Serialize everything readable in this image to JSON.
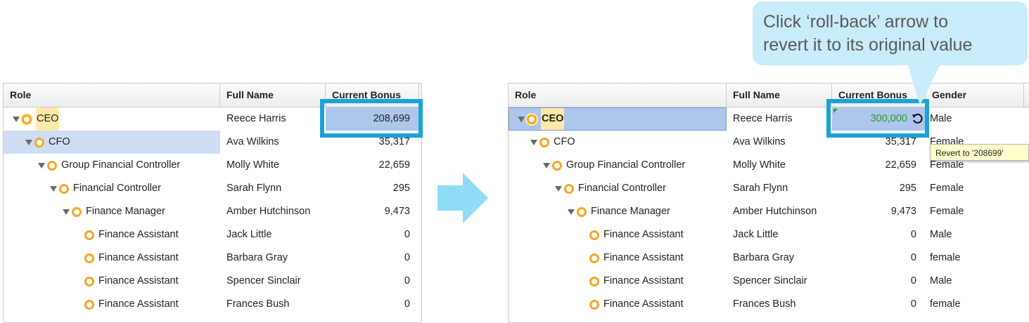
{
  "columns": {
    "role": "Role",
    "full_name": "Full Name",
    "current_bonus": "Current Bonus",
    "gender": "Gender"
  },
  "left_rows": [
    {
      "role": "CEO",
      "name": "Reece Harris",
      "bonus": "208,699"
    },
    {
      "role": "CFO",
      "name": "Ava Wilkins",
      "bonus": "35,317"
    },
    {
      "role": "Group Financial Controller",
      "name": "Molly White",
      "bonus": "22,659"
    },
    {
      "role": "Financial Controller",
      "name": "Sarah Flynn",
      "bonus": "295"
    },
    {
      "role": "Finance Manager",
      "name": "Amber Hutchinson",
      "bonus": "9,473"
    },
    {
      "role": "Finance Assistant",
      "name": "Jack Little",
      "bonus": "0"
    },
    {
      "role": "Finance Assistant",
      "name": "Barbara Gray",
      "bonus": "0"
    },
    {
      "role": "Finance Assistant",
      "name": "Spencer Sinclair",
      "bonus": "0"
    },
    {
      "role": "Finance Assistant",
      "name": "Frances Bush",
      "bonus": "0"
    }
  ],
  "right_rows": [
    {
      "role": "CEO",
      "name": "Reece Harris",
      "bonus": "300,000",
      "gender": "Male"
    },
    {
      "role": "CFO",
      "name": "Ava Wilkins",
      "bonus": "35,317",
      "gender": "Female"
    },
    {
      "role": "Group Financial Controller",
      "name": "Molly White",
      "bonus": "22,659",
      "gender": "Female"
    },
    {
      "role": "Financial Controller",
      "name": "Sarah Flynn",
      "bonus": "295",
      "gender": "Female"
    },
    {
      "role": "Finance Manager",
      "name": "Amber Hutchinson",
      "bonus": "9,473",
      "gender": "Female"
    },
    {
      "role": "Finance Assistant",
      "name": "Jack Little",
      "bonus": "0",
      "gender": "Male"
    },
    {
      "role": "Finance Assistant",
      "name": "Barbara Gray",
      "bonus": "0",
      "gender": "female"
    },
    {
      "role": "Finance Assistant",
      "name": "Spencer Sinclair",
      "bonus": "0",
      "gender": "Male"
    },
    {
      "role": "Finance Assistant",
      "name": "Frances Bush",
      "bonus": "0",
      "gender": "female"
    }
  ],
  "tooltip": "Revert to '208699'",
  "callout": {
    "line1": "Click ‘roll-back’ arrow to",
    "line2": "revert it to its original value"
  },
  "icons": {
    "expand": "triangle-down-icon",
    "node": "orange-circle-icon",
    "undo": "roll-back-arrow-icon",
    "transition": "right-arrow-icon"
  },
  "colors": {
    "highlight_box": "#1aa3d7",
    "selection": "#adc6ec",
    "edited_value": "#2a9a2a",
    "callout_bg": "#c9ecfb",
    "node_icon": "#f5a623"
  }
}
